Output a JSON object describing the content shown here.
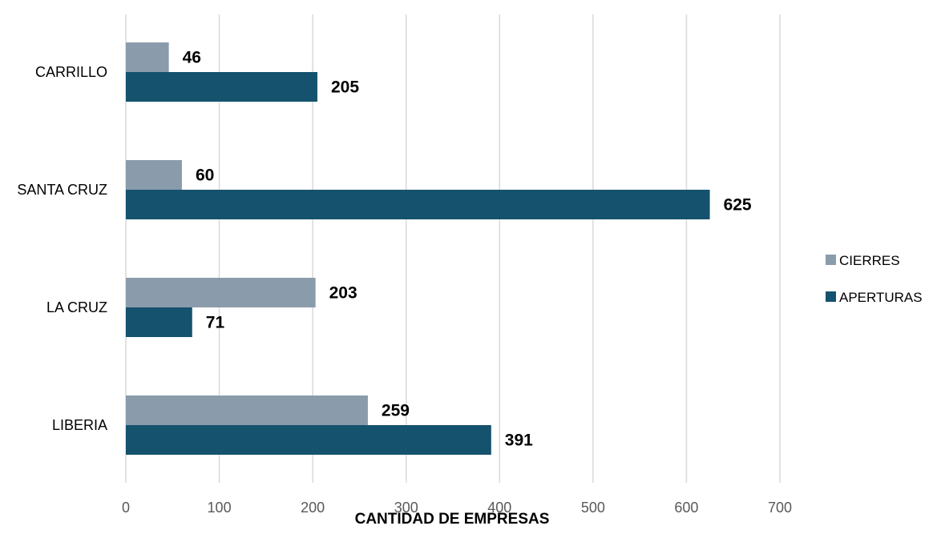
{
  "chart_data": {
    "type": "bar",
    "orientation": "horizontal",
    "categories": [
      "CARRILLO",
      "SANTA CRUZ",
      "LA CRUZ",
      "LIBERIA"
    ],
    "series": [
      {
        "name": "CIERRES",
        "color": "#8a9bab",
        "values": [
          46,
          60,
          203,
          259
        ]
      },
      {
        "name": "APERTURAS",
        "color": "#14526d",
        "values": [
          205,
          625,
          71,
          391
        ]
      }
    ],
    "xlabel": "CANTIDAD DE EMPRESAS",
    "ylabel": "",
    "xlim": [
      0,
      700
    ],
    "xticks": [
      "0",
      "100",
      "200",
      "300",
      "400",
      "500",
      "600",
      "700"
    ],
    "grid": "vertical",
    "legend": "right",
    "data_labels": true
  }
}
